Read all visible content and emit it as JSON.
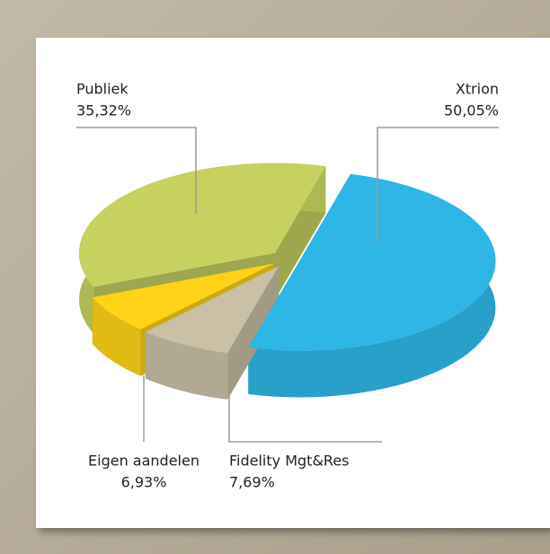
{
  "chart_data": {
    "type": "pie",
    "categories": [
      "Xtrion",
      "Fidelity Mgt&Res",
      "Eigen aandelen",
      "Publiek"
    ],
    "values": [
      50.05,
      7.69,
      6.93,
      35.32
    ],
    "value_labels": [
      "50,05%",
      "7,69%",
      "6,93%",
      "35,32%"
    ],
    "colors": [
      "#2db6e6",
      "#c9c0a6",
      "#ffd318",
      "#c6d160"
    ]
  }
}
